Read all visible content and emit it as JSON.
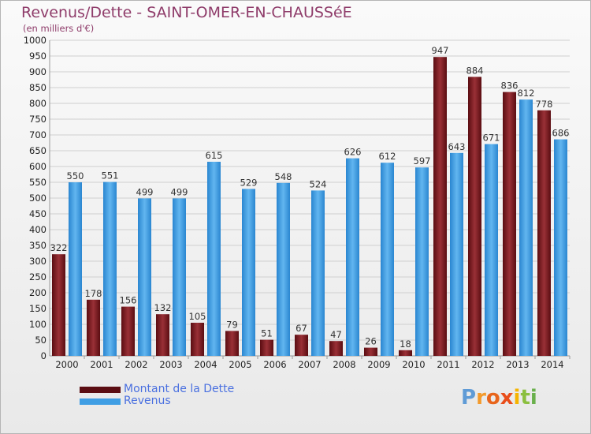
{
  "title": "Revenus/Dette - SAINT-OMER-EN-CHAUSSéE",
  "subtitle": "(en milliers d'€)",
  "logo": {
    "text": "Proxiti",
    "letters": [
      "P",
      "r",
      "o",
      "x",
      "i",
      "t",
      "i"
    ],
    "colors": [
      "#5f9bd6",
      "#f39a2b",
      "#e8651c",
      "#e94e1b",
      "#f5b400",
      "#8bbf3f",
      "#6ab04c"
    ]
  },
  "colors": {
    "dette": "#7a1d22",
    "revenus": "#3f9ee4"
  },
  "legend": [
    {
      "label": "Montant de la Dette",
      "color": "#7a1d22"
    },
    {
      "label": "Revenus",
      "color": "#3f9ee4"
    }
  ],
  "chart_data": {
    "type": "bar",
    "title": "Revenus/Dette - SAINT-OMER-EN-CHAUSSéE",
    "ylabel": "(en milliers d'€)",
    "xlabel": "",
    "ylim": [
      0,
      1000
    ],
    "yticks": [
      0,
      50,
      100,
      150,
      200,
      250,
      300,
      350,
      400,
      450,
      500,
      550,
      600,
      650,
      700,
      750,
      800,
      850,
      900,
      950,
      1000
    ],
    "grid": true,
    "categories": [
      "2000",
      "2001",
      "2002",
      "2003",
      "2004",
      "2005",
      "2006",
      "2007",
      "2008",
      "2009",
      "2010",
      "2011",
      "2012",
      "2013",
      "2014"
    ],
    "series": [
      {
        "name": "Montant de la Dette",
        "values": [
          322,
          178,
          156,
          132,
          105,
          79,
          51,
          67,
          47,
          26,
          18,
          947,
          884,
          836,
          778
        ]
      },
      {
        "name": "Revenus",
        "values": [
          550,
          551,
          499,
          499,
          615,
          529,
          548,
          524,
          626,
          612,
          597,
          643,
          671,
          812,
          686
        ]
      }
    ],
    "legend_position": "bottom-left"
  }
}
